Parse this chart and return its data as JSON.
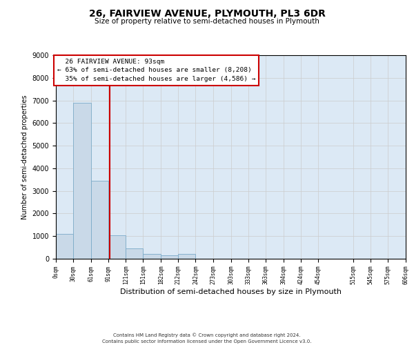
{
  "title1": "26, FAIRVIEW AVENUE, PLYMOUTH, PL3 6DR",
  "title2": "Size of property relative to semi-detached houses in Plymouth",
  "xlabel": "Distribution of semi-detached houses by size in Plymouth",
  "ylabel": "Number of semi-detached properties",
  "tick_labels": [
    "0sqm",
    "30sqm",
    "61sqm",
    "91sqm",
    "121sqm",
    "151sqm",
    "182sqm",
    "212sqm",
    "242sqm",
    "273sqm",
    "303sqm",
    "333sqm",
    "363sqm",
    "394sqm",
    "424sqm",
    "454sqm",
    "515sqm",
    "545sqm",
    "575sqm",
    "606sqm"
  ],
  "tick_values": [
    0,
    30,
    61,
    91,
    121,
    151,
    182,
    212,
    242,
    273,
    303,
    333,
    363,
    394,
    424,
    454,
    515,
    545,
    575,
    606
  ],
  "bar_lefts": [
    0,
    30,
    61,
    91,
    121,
    151,
    182,
    212,
    242,
    273,
    303,
    333,
    363,
    394,
    424,
    454,
    515,
    545,
    575
  ],
  "bar_widths": [
    30,
    31,
    30,
    30,
    30,
    31,
    30,
    30,
    31,
    30,
    30,
    30,
    31,
    30,
    30,
    61,
    30,
    30,
    31
  ],
  "bar_values": [
    1100,
    6900,
    3450,
    1050,
    450,
    200,
    150,
    200,
    0,
    0,
    0,
    0,
    0,
    0,
    0,
    0,
    0,
    0,
    0
  ],
  "bar_color": "#c9d9e8",
  "bar_edge_color": "#7aaac8",
  "property_sqm": 93,
  "property_label": "26 FAIRVIEW AVENUE: 93sqm",
  "smaller_pct": 63,
  "smaller_count": "8,208",
  "larger_pct": 35,
  "larger_count": "4,586",
  "annotation_box_edge": "#cc0000",
  "vline_color": "#cc0000",
  "ylim_max": 9000,
  "yticks": [
    0,
    1000,
    2000,
    3000,
    4000,
    5000,
    6000,
    7000,
    8000,
    9000
  ],
  "grid_color": "#cccccc",
  "bg_color": "#dce9f5",
  "footer1": "Contains HM Land Registry data © Crown copyright and database right 2024.",
  "footer2": "Contains public sector information licensed under the Open Government Licence v3.0."
}
